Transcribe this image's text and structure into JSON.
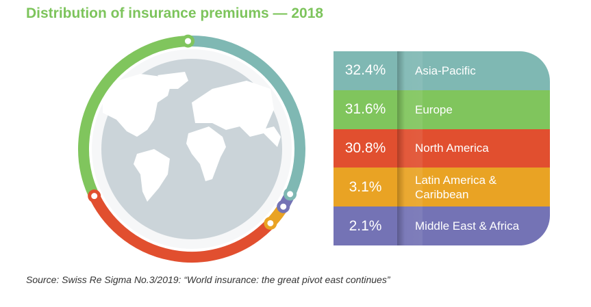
{
  "title": "Distribution of insurance premiums — 2018",
  "source": "Source: Swiss Re Sigma No.3/2019: “World insurance: the great pivot east continues”",
  "chart_data": {
    "type": "pie",
    "title": "Distribution of insurance premiums — 2018",
    "unit": "%",
    "series": [
      {
        "name": "Asia-Pacific",
        "value": 32.4,
        "label": "32.4%",
        "color": "#7fb8b3"
      },
      {
        "name": "Middle East & Africa",
        "value": 2.1,
        "label": "2.1%",
        "color": "#7473b5"
      },
      {
        "name": "Latin America & Caribbean",
        "value": 3.1,
        "label": "3.1%",
        "color": "#e9a324"
      },
      {
        "name": "North America",
        "value": 30.8,
        "label": "30.8%",
        "color": "#e14f2f"
      },
      {
        "name": "Europe",
        "value": 31.6,
        "label": "31.6%",
        "color": "#80c55d"
      }
    ],
    "table_order": [
      "Asia-Pacific",
      "Europe",
      "North America",
      "Latin America & Caribbean",
      "Middle East & Africa"
    ]
  }
}
